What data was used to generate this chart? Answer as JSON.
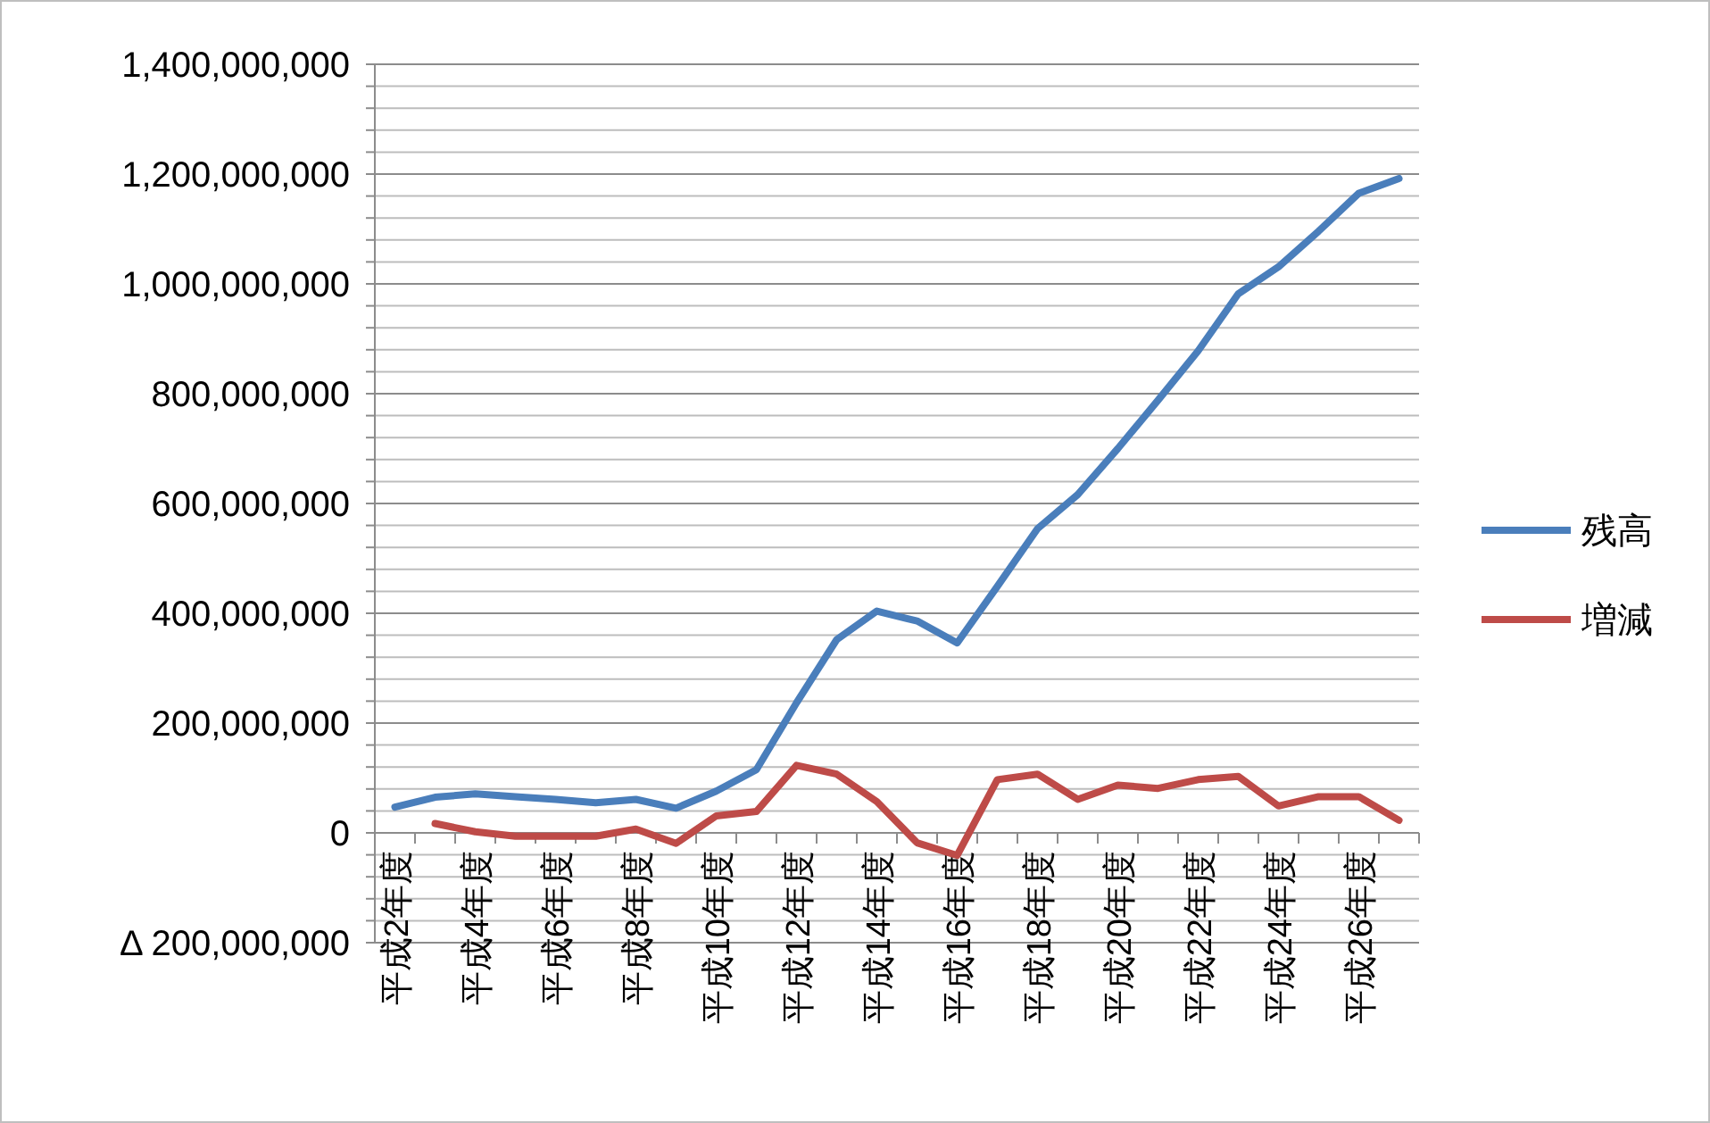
{
  "chart_data": {
    "type": "line",
    "categories": [
      "平成2年度",
      null,
      "平成4年度",
      null,
      "平成6年度",
      null,
      "平成8年度",
      null,
      "平成10年度",
      null,
      "平成12年度",
      null,
      "平成14年度",
      null,
      "平成16年度",
      null,
      "平成18年度",
      null,
      "平成20年度",
      null,
      "平成22年度",
      null,
      "平成24年度",
      null,
      "平成26年度",
      null
    ],
    "series": [
      {
        "name": "残高",
        "color": "#4a7ebb",
        "values": [
          47000000,
          65000000,
          71000000,
          66000000,
          61000000,
          55000000,
          61000000,
          45000000,
          76000000,
          115000000,
          237000000,
          352000000,
          404000000,
          386000000,
          346000000,
          449000000,
          554000000,
          616000000,
          700000000,
          788000000,
          878000000,
          982000000,
          1031000000,
          1096000000,
          1165000000,
          1192000000
        ]
      },
      {
        "name": "増減",
        "color": "#be4b48",
        "values": [
          null,
          17000000,
          2000000,
          -6000000,
          -6000000,
          -6000000,
          7000000,
          -19000000,
          31000000,
          39000000,
          123000000,
          107000000,
          57000000,
          -18000000,
          -41000000,
          97000000,
          107000000,
          61000000,
          87000000,
          81000000,
          97000000,
          103000000,
          49000000,
          66000000,
          66000000,
          23000000
        ]
      }
    ],
    "ylim": [
      -200000000,
      1400000000
    ],
    "yticks": [
      {
        "value": -200000000,
        "label": "Δ 200,000,000"
      },
      {
        "value": -160000000,
        "label": null
      },
      {
        "value": -120000000,
        "label": null
      },
      {
        "value": -80000000,
        "label": null
      },
      {
        "value": -40000000,
        "label": null
      },
      {
        "value": 0,
        "label": "0"
      },
      {
        "value": 40000000,
        "label": null
      },
      {
        "value": 80000000,
        "label": null
      },
      {
        "value": 120000000,
        "label": null
      },
      {
        "value": 160000000,
        "label": null
      },
      {
        "value": 200000000,
        "label": "200,000,000"
      },
      {
        "value": 240000000,
        "label": null
      },
      {
        "value": 280000000,
        "label": null
      },
      {
        "value": 320000000,
        "label": null
      },
      {
        "value": 360000000,
        "label": null
      },
      {
        "value": 400000000,
        "label": "400,000,000"
      },
      {
        "value": 440000000,
        "label": null
      },
      {
        "value": 480000000,
        "label": null
      },
      {
        "value": 520000000,
        "label": null
      },
      {
        "value": 560000000,
        "label": null
      },
      {
        "value": 600000000,
        "label": "600,000,000"
      },
      {
        "value": 640000000,
        "label": null
      },
      {
        "value": 680000000,
        "label": null
      },
      {
        "value": 720000000,
        "label": null
      },
      {
        "value": 760000000,
        "label": null
      },
      {
        "value": 800000000,
        "label": "800,000,000"
      },
      {
        "value": 840000000,
        "label": null
      },
      {
        "value": 880000000,
        "label": null
      },
      {
        "value": 920000000,
        "label": null
      },
      {
        "value": 960000000,
        "label": null
      },
      {
        "value": 1000000000,
        "label": "1,000,000,000"
      },
      {
        "value": 1040000000,
        "label": null
      },
      {
        "value": 1080000000,
        "label": null
      },
      {
        "value": 1120000000,
        "label": null
      },
      {
        "value": 1160000000,
        "label": null
      },
      {
        "value": 1200000000,
        "label": "1,200,000,000"
      },
      {
        "value": 1240000000,
        "label": null
      },
      {
        "value": 1280000000,
        "label": null
      },
      {
        "value": 1320000000,
        "label": null
      },
      {
        "value": 1360000000,
        "label": null
      },
      {
        "value": 1400000000,
        "label": "1,400,000,000"
      }
    ],
    "grid": true,
    "legend": "right",
    "line_style": "solid"
  }
}
